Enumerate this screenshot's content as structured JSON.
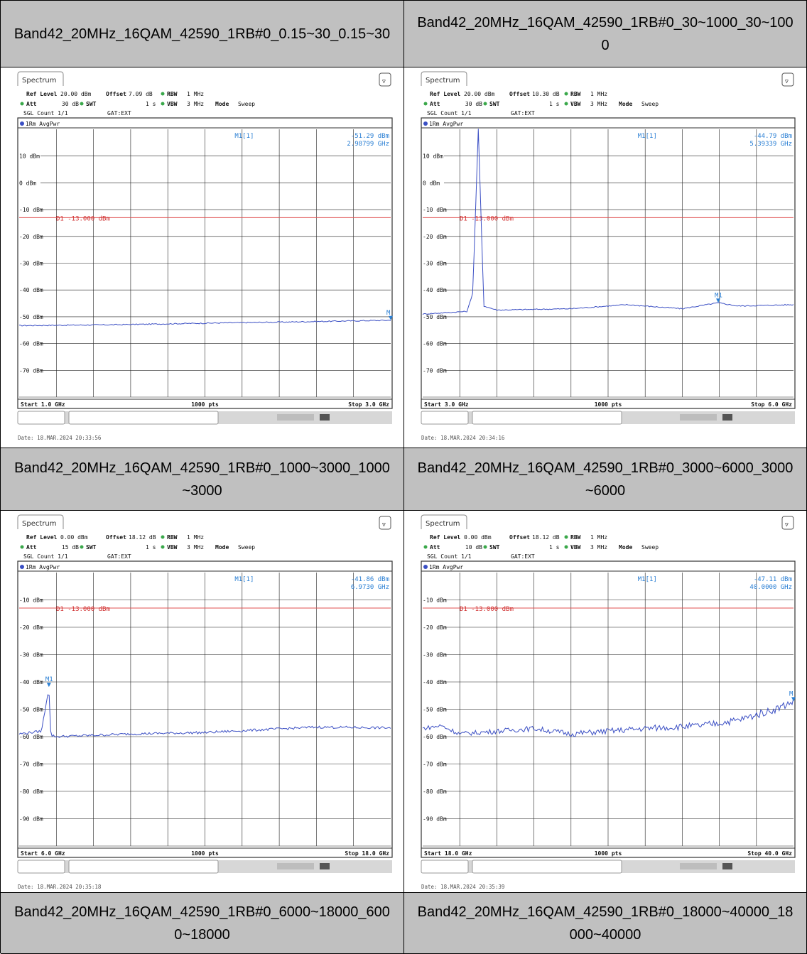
{
  "headers": [
    "Band42_20MHz_16QAM_42590_1RB#0_0.15~30_0.15~30",
    "Band42_20MHz_16QAM_42590_1RB#0_30~1000_30~1000",
    "Band42_20MHz_16QAM_42590_1RB#0_1000~3000_1000~3000",
    "Band42_20MHz_16QAM_42590_1RB#0_3000~6000_3000~6000",
    "Band42_20MHz_16QAM_42590_1RB#0_6000~18000_6000~18000",
    "Band42_20MHz_16QAM_42590_1RB#0_18000~40000_18000~40000"
  ],
  "common": {
    "tab": "Spectrum",
    "ref_level_label": "Ref Level",
    "offset_label": "Offset",
    "rbw_label": "RBW",
    "rbw": "1 MHz",
    "att_label": "Att",
    "swt_label": "SWT",
    "swt": "1 s",
    "vbw_label": "VBW",
    "vbw": "3 MHz",
    "mode_label": "Mode",
    "mode": "Sweep",
    "sgl": "SGL Count 1/1",
    "gat": "GAT:EXT",
    "trace": "1Rm AvgPwr",
    "marker_name": "M1[1]",
    "limit_label": "D1 -13.000 dBm",
    "pts": "1000 pts",
    "colors": {
      "trace": "#3b4fc4",
      "limit": "#e05050",
      "marker": "#2a7fd4"
    }
  },
  "chart_data": [
    {
      "type": "line",
      "ref_level": "20.00 dBm",
      "offset": "7.09 dB",
      "att": "30 dB",
      "y_ticks": [
        "10 dBm",
        "0 dBm",
        "-10 dBm",
        "-20 dBm",
        "-30 dBm",
        "-40 dBm",
        "-50 dBm",
        "-60 dBm",
        "-70 dBm"
      ],
      "ylim": [
        -80,
        20
      ],
      "x_start": "Start 1.0 GHz",
      "x_stop": "Stop 3.0 GHz",
      "limit_dbm": -13,
      "marker": {
        "label": "M",
        "value": "-51.29 dBm",
        "freq": "2.98799 GHz",
        "x_frac": 1.0,
        "y": -51.29
      },
      "series": [
        {
          "x": [
            0,
            0.25,
            0.5,
            0.75,
            1.0
          ],
          "y": [
            -53.3,
            -53.0,
            -52.4,
            -51.9,
            -51.3
          ]
        }
      ],
      "date": "Date: 18.MAR.2024 20:33:56"
    },
    {
      "type": "line",
      "ref_level": "20.00 dBm",
      "offset": "10.30 dB",
      "att": "30 dB",
      "y_ticks": [
        "10 dBm",
        "0 dBm",
        "-10 dBm",
        "-20 dBm",
        "-30 dBm",
        "-40 dBm",
        "-50 dBm",
        "-60 dBm",
        "-70 dBm"
      ],
      "ylim": [
        -80,
        20
      ],
      "x_start": "Start 3.0 GHz",
      "x_stop": "Stop 6.0 GHz",
      "limit_dbm": -13,
      "marker": {
        "label": "M1",
        "value": "-44.79 dBm",
        "freq": "5.39339 GHz",
        "x_frac": 0.797,
        "y": -44.79
      },
      "series": [
        {
          "x": [
            0,
            0.12,
            0.135,
            0.15,
            0.165,
            0.2,
            0.4,
            0.55,
            0.7,
            0.797,
            0.85,
            1.0
          ],
          "y": [
            -49,
            -48,
            -41,
            20,
            -46,
            -47.5,
            -47,
            -45.5,
            -47,
            -44.8,
            -46,
            -45.5
          ]
        }
      ],
      "date": "Date: 18.MAR.2024 20:34:16"
    },
    {
      "type": "line",
      "ref_level": "0.00 dBm",
      "offset": "18.12 dB",
      "att": "15 dB",
      "y_ticks": [
        "-10 dBm",
        "-20 dBm",
        "-30 dBm",
        "-40 dBm",
        "-50 dBm",
        "-60 dBm",
        "-70 dBm",
        "-80 dBm",
        "-90 dBm"
      ],
      "ylim": [
        -100,
        0
      ],
      "x_start": "Start 6.0 GHz",
      "x_stop": "Stop 18.0 GHz",
      "limit_dbm": -13,
      "marker": {
        "label": "M1",
        "value": "-41.86 dBm",
        "freq": "6.9730 GHz",
        "x_frac": 0.08,
        "y": -41.86
      },
      "series": [
        {
          "x": [
            0,
            0.06,
            0.08,
            0.085,
            0.1,
            0.3,
            0.5,
            0.65,
            0.8,
            1.0
          ],
          "y": [
            -59,
            -58,
            -41.9,
            -59.5,
            -60,
            -59,
            -58.5,
            -57.5,
            -56.5,
            -56.8
          ]
        }
      ],
      "date": "Date: 18.MAR.2024 20:35:18"
    },
    {
      "type": "line",
      "ref_level": "0.00 dBm",
      "offset": "18.12 dB",
      "att": "10 dB",
      "y_ticks": [
        "-10 dBm",
        "-20 dBm",
        "-30 dBm",
        "-40 dBm",
        "-50 dBm",
        "-60 dBm",
        "-70 dBm",
        "-80 dBm",
        "-90 dBm"
      ],
      "ylim": [
        -100,
        0
      ],
      "x_start": "Start 18.0 GHz",
      "x_stop": "Stop 40.0 GHz",
      "limit_dbm": -13,
      "marker": {
        "label": "M",
        "value": "-47.11 dBm",
        "freq": "40.0000 GHz",
        "x_frac": 1.0,
        "y": -47.11
      },
      "series": [
        {
          "x": [
            0,
            0.05,
            0.1,
            0.3,
            0.4,
            0.6,
            0.75,
            0.85,
            0.95,
            1.0
          ],
          "y": [
            -57,
            -56,
            -59,
            -57,
            -59,
            -57,
            -56,
            -54,
            -50,
            -47.1
          ]
        }
      ],
      "date": "Date: 18.MAR.2024 20:35:39"
    }
  ]
}
